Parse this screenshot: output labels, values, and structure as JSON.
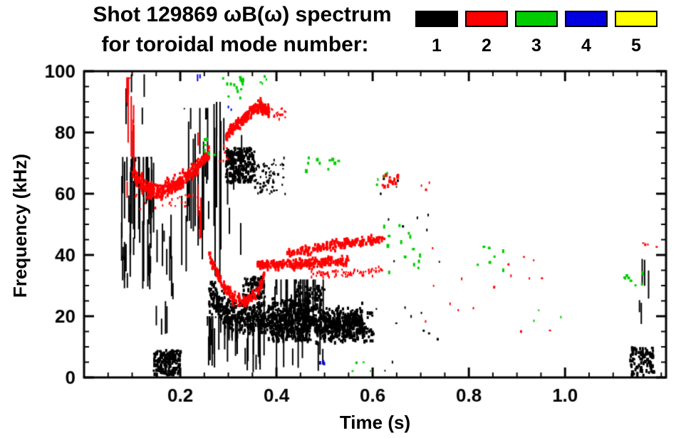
{
  "title": {
    "line1": "Shot 129869 ωB(ω) spectrum",
    "line2": "for toroidal mode number:"
  },
  "legend": {
    "items": [
      {
        "label": "1",
        "color": "#000000"
      },
      {
        "label": "2",
        "color": "#ff0000"
      },
      {
        "label": "3",
        "color": "#00cc00"
      },
      {
        "label": "4",
        "color": "#0000e0"
      },
      {
        "label": "5",
        "color": "#ffff00"
      }
    ]
  },
  "chart_data": {
    "type": "scatter",
    "title": "Shot 129869 ωB(ω) spectrum for toroidal mode number: 1-5",
    "xlabel": "Time (s)",
    "ylabel": "Frequency (kHz)",
    "xlim": [
      0,
      1.21
    ],
    "ylim": [
      0,
      100
    ],
    "grid": false,
    "legend_position": "top-right",
    "x_ticks": {
      "major": [
        0.2,
        0.4,
        0.6,
        0.8,
        1.0
      ],
      "labels": [
        "0.2",
        "0.4",
        "0.6",
        "0.8",
        "1.0"
      ],
      "minor_step": 0.05
    },
    "y_ticks": {
      "major": [
        0,
        20,
        40,
        60,
        80,
        100
      ],
      "labels": [
        "0",
        "20",
        "40",
        "60",
        "80",
        "100"
      ],
      "minor_step": 5
    },
    "series": [
      {
        "name": "n=1",
        "color": "#000000",
        "clusters": [
          {
            "kind": "vlines",
            "t": [
              0.075,
              0.145
            ],
            "f": [
              28,
              72
            ],
            "n": 55,
            "len": [
              4,
              30
            ],
            "w": 2
          },
          {
            "kind": "vlines",
            "t": [
              0.08,
              0.13
            ],
            "f": [
              60,
              99
            ],
            "n": 10,
            "len": [
              3,
              12
            ],
            "w": 2
          },
          {
            "kind": "box",
            "t": [
              0.145,
              0.2
            ],
            "f": [
              1,
              9
            ],
            "n": 160,
            "size": 3
          },
          {
            "kind": "vlines",
            "t": [
              0.15,
              0.185
            ],
            "f": [
              10,
              55
            ],
            "n": 12,
            "len": [
              3,
              15
            ],
            "w": 2
          },
          {
            "kind": "vlines",
            "t": [
              0.2,
              0.26
            ],
            "f": [
              30,
              88
            ],
            "n": 22,
            "len": [
              5,
              35
            ],
            "w": 2
          },
          {
            "kind": "vlines",
            "t": [
              0.265,
              0.285
            ],
            "f": [
              30,
              90
            ],
            "n": 8,
            "len": [
              5,
              45
            ],
            "w": 2
          },
          {
            "kind": "vlines",
            "t": [
              0.29,
              0.33
            ],
            "f": [
              40,
              92
            ],
            "n": 6,
            "len": [
              4,
              12
            ],
            "w": 2
          },
          {
            "kind": "box",
            "t": [
              0.295,
              0.355
            ],
            "f": [
              64,
              75
            ],
            "n": 220,
            "size": 3
          },
          {
            "kind": "box",
            "t": [
              0.355,
              0.395
            ],
            "f": [
              60,
              70
            ],
            "n": 60,
            "size": 2
          },
          {
            "kind": "dots",
            "t": [
              0.38,
              0.42
            ],
            "f": [
              60,
              72
            ],
            "n": 15,
            "size": 2
          },
          {
            "kind": "path",
            "pts": [
              [
                0.26,
                27
              ],
              [
                0.3,
                21
              ],
              [
                0.34,
                20
              ],
              [
                0.4,
                19
              ],
              [
                0.46,
                18
              ],
              [
                0.52,
                17
              ],
              [
                0.58,
                18
              ]
            ],
            "spread": 5,
            "n": 1000,
            "size": 3
          },
          {
            "kind": "vlines",
            "t": [
              0.25,
              0.37
            ],
            "f": [
              1,
              20
            ],
            "n": 45,
            "len": [
              4,
              18
            ],
            "w": 2
          },
          {
            "kind": "vlines",
            "t": [
              0.37,
              0.5
            ],
            "f": [
              2,
              32
            ],
            "n": 40,
            "len": [
              4,
              20
            ],
            "w": 2
          },
          {
            "kind": "box",
            "t": [
              0.33,
              0.375
            ],
            "f": [
              26,
              33
            ],
            "n": 90,
            "size": 3
          },
          {
            "kind": "box",
            "t": [
              0.39,
              0.47
            ],
            "f": [
              12,
              26
            ],
            "n": 200,
            "size": 3
          },
          {
            "kind": "box",
            "t": [
              0.44,
              0.5
            ],
            "f": [
              22,
              30
            ],
            "n": 80,
            "size": 3
          },
          {
            "kind": "box",
            "t": [
              0.5,
              0.6
            ],
            "f": [
              12,
              22
            ],
            "n": 150,
            "size": 3
          },
          {
            "kind": "dots",
            "t": [
              0.6,
              0.78
            ],
            "f": [
              2,
              55
            ],
            "n": 18,
            "size": 2
          },
          {
            "kind": "dots",
            "t": [
              0.6,
              0.66
            ],
            "f": [
              55,
              66
            ],
            "n": 6,
            "size": 2
          },
          {
            "kind": "box",
            "t": [
              1.135,
              1.185
            ],
            "f": [
              0.5,
              10
            ],
            "n": 90,
            "size": 3
          },
          {
            "kind": "vlines",
            "t": [
              1.15,
              1.175
            ],
            "f": [
              12,
              45
            ],
            "n": 5,
            "len": [
              3,
              10
            ],
            "w": 2
          }
        ]
      },
      {
        "name": "n=2",
        "color": "#ff0000",
        "clusters": [
          {
            "kind": "vlines",
            "t": [
              0.085,
              0.105
            ],
            "f": [
              55,
              98
            ],
            "n": 10,
            "len": [
              4,
              20
            ],
            "w": 2
          },
          {
            "kind": "path",
            "pts": [
              [
                0.1,
                67
              ],
              [
                0.13,
                62
              ],
              [
                0.16,
                61
              ],
              [
                0.2,
                64
              ],
              [
                0.23,
                68
              ],
              [
                0.26,
                73
              ]
            ],
            "spread": 2.5,
            "n": 350,
            "size": 3
          },
          {
            "kind": "dots",
            "t": [
              0.1,
              0.25
            ],
            "f": [
              55,
              60
            ],
            "n": 30,
            "size": 2
          },
          {
            "kind": "vlines",
            "t": [
              0.225,
              0.245
            ],
            "f": [
              40,
              80
            ],
            "n": 5,
            "len": [
              4,
              15
            ],
            "w": 2
          },
          {
            "kind": "dots",
            "t": [
              0.28,
              0.3
            ],
            "f": [
              70,
              76
            ],
            "n": 8,
            "size": 2
          },
          {
            "kind": "path",
            "pts": [
              [
                0.295,
                79
              ],
              [
                0.32,
                83
              ],
              [
                0.345,
                87
              ],
              [
                0.365,
                89
              ],
              [
                0.385,
                87
              ]
            ],
            "spread": 1.8,
            "n": 260,
            "size": 3
          },
          {
            "kind": "dots",
            "t": [
              0.39,
              0.42
            ],
            "f": [
              84,
              88
            ],
            "n": 18,
            "size": 2
          },
          {
            "kind": "path",
            "pts": [
              [
                0.26,
                40
              ],
              [
                0.285,
                31
              ],
              [
                0.31,
                26
              ],
              [
                0.335,
                25
              ],
              [
                0.36,
                28
              ],
              [
                0.375,
                33
              ]
            ],
            "spread": 1.8,
            "n": 180,
            "size": 3
          },
          {
            "kind": "path",
            "pts": [
              [
                0.36,
                37
              ],
              [
                0.44,
                37
              ],
              [
                0.52,
                38
              ],
              [
                0.55,
                38
              ]
            ],
            "spread": 1.5,
            "n": 260,
            "size": 3
          },
          {
            "kind": "path",
            "pts": [
              [
                0.42,
                41
              ],
              [
                0.48,
                42
              ],
              [
                0.54,
                44
              ],
              [
                0.6,
                45
              ],
              [
                0.625,
                45
              ]
            ],
            "spread": 1.5,
            "n": 200,
            "size": 3
          },
          {
            "kind": "path",
            "pts": [
              [
                0.47,
                34
              ],
              [
                0.55,
                34
              ],
              [
                0.62,
                35
              ]
            ],
            "spread": 1.2,
            "n": 90,
            "size": 2
          },
          {
            "kind": "dots",
            "t": [
              0.615,
              0.655
            ],
            "f": [
              62,
              67
            ],
            "n": 14,
            "size": 3
          },
          {
            "kind": "dots",
            "t": [
              0.66,
              0.97
            ],
            "f": [
              15,
              45
            ],
            "n": 16,
            "size": 2
          },
          {
            "kind": "dots",
            "t": [
              0.7,
              0.72
            ],
            "f": [
              60,
              64
            ],
            "n": 3,
            "size": 2
          },
          {
            "kind": "dots",
            "t": [
              1.16,
              1.19
            ],
            "f": [
              40,
              47
            ],
            "n": 4,
            "size": 2
          }
        ]
      },
      {
        "name": "n=3",
        "color": "#00cc00",
        "clusters": [
          {
            "kind": "dots",
            "t": [
              0.285,
              0.33
            ],
            "f": [
              90,
              99
            ],
            "n": 14,
            "size": 3
          },
          {
            "kind": "dots",
            "t": [
              0.245,
              0.275
            ],
            "f": [
              72,
              78
            ],
            "n": 6,
            "size": 3
          },
          {
            "kind": "dots",
            "t": [
              0.35,
              0.38
            ],
            "f": [
              95,
              99
            ],
            "n": 4,
            "size": 2
          },
          {
            "kind": "dots",
            "t": [
              0.46,
              0.53
            ],
            "f": [
              67,
              72
            ],
            "n": 10,
            "size": 3
          },
          {
            "kind": "dots",
            "t": [
              0.6,
              0.64
            ],
            "f": [
              63,
              68
            ],
            "n": 4,
            "size": 2
          },
          {
            "kind": "dots",
            "t": [
              0.62,
              0.7
            ],
            "f": [
              33,
              50
            ],
            "n": 14,
            "size": 3
          },
          {
            "kind": "dots",
            "t": [
              0.8,
              0.88
            ],
            "f": [
              34,
              43
            ],
            "n": 7,
            "size": 3
          },
          {
            "kind": "dots",
            "t": [
              0.93,
              1.0
            ],
            "f": [
              17,
              22
            ],
            "n": 3,
            "size": 2
          },
          {
            "kind": "dots",
            "t": [
              0.53,
              0.6
            ],
            "f": [
              2,
              9
            ],
            "n": 4,
            "size": 2
          },
          {
            "kind": "dots",
            "t": [
              1.12,
              1.165
            ],
            "f": [
              30,
              35
            ],
            "n": 9,
            "size": 3
          }
        ]
      },
      {
        "name": "n=4",
        "color": "#0000e0",
        "clusters": [
          {
            "kind": "vlines",
            "t": [
              0.232,
              0.242
            ],
            "f": [
              92,
              99
            ],
            "n": 2,
            "len": [
              4,
              7
            ],
            "w": 2
          },
          {
            "kind": "dots",
            "t": [
              0.29,
              0.31
            ],
            "f": [
              86,
              91
            ],
            "n": 2,
            "size": 2
          },
          {
            "kind": "dots",
            "t": [
              0.49,
              0.51
            ],
            "f": [
              3,
              7
            ],
            "n": 3,
            "size": 3
          }
        ]
      },
      {
        "name": "n=5",
        "color": "#ffff00",
        "clusters": []
      }
    ]
  }
}
